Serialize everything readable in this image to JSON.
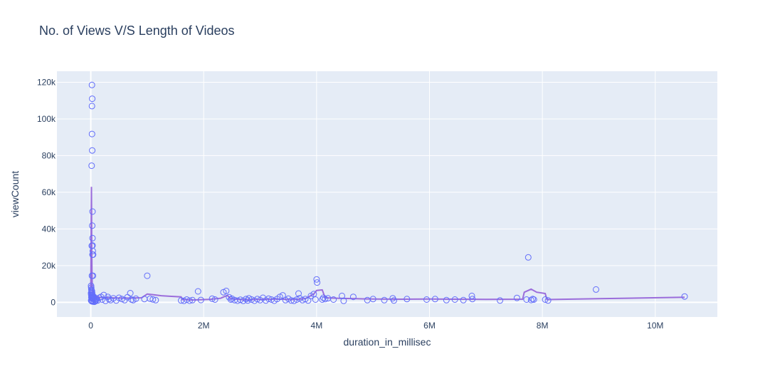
{
  "chart_data": {
    "type": "scatter",
    "title": "No. of Views V/S Length of Videos",
    "xlabel": "duration_in_millisec",
    "ylabel": "viewCount",
    "xlim": [
      -600000,
      11100000
    ],
    "ylim": [
      -8000,
      126000
    ],
    "x_ticks": [
      0,
      2000000,
      4000000,
      6000000,
      8000000,
      10000000
    ],
    "x_tick_labels": [
      "0",
      "2M",
      "4M",
      "6M",
      "8M",
      "10M"
    ],
    "y_ticks": [
      0,
      20000,
      40000,
      60000,
      80000,
      100000,
      120000
    ],
    "y_tick_labels": [
      "0",
      "20k",
      "40k",
      "60k",
      "80k",
      "100k",
      "120k"
    ],
    "grid": true,
    "colors": {
      "background": "#e5ecf6",
      "grid": "#ffffff",
      "marker": "#636efa",
      "trend": "#9b6ddb",
      "text": "#2a3f5f"
    },
    "series": [
      {
        "mode": "markers",
        "points": [
          [
            20000,
            118500
          ],
          [
            25000,
            111000
          ],
          [
            20000,
            107000
          ],
          [
            22000,
            91800
          ],
          [
            25000,
            82800
          ],
          [
            15000,
            74500
          ],
          [
            30000,
            49500
          ],
          [
            25000,
            41800
          ],
          [
            30000,
            35000
          ],
          [
            18000,
            30800
          ],
          [
            30000,
            31000
          ],
          [
            35000,
            28000
          ],
          [
            30000,
            26000
          ],
          [
            40000,
            26000
          ],
          [
            38000,
            14500
          ],
          [
            20000,
            14500
          ],
          [
            5000,
            9000
          ],
          [
            8000,
            8000
          ],
          [
            10000,
            7000
          ],
          [
            15000,
            6500
          ],
          [
            20000,
            6000
          ],
          [
            12000,
            5500
          ],
          [
            5000,
            5000
          ],
          [
            25000,
            4800
          ],
          [
            8000,
            4200
          ],
          [
            18000,
            3800
          ],
          [
            30000,
            3500
          ],
          [
            40000,
            3200
          ],
          [
            55000,
            3000
          ],
          [
            10000,
            2800
          ],
          [
            15000,
            2500
          ],
          [
            22000,
            2200
          ],
          [
            35000,
            2000
          ],
          [
            50000,
            1800
          ],
          [
            70000,
            1500
          ],
          [
            90000,
            1200
          ],
          [
            6000,
            1000
          ],
          [
            12000,
            800
          ],
          [
            20000,
            600
          ],
          [
            28000,
            500
          ],
          [
            45000,
            400
          ],
          [
            65000,
            300
          ],
          [
            85000,
            700
          ],
          [
            100000,
            2000
          ],
          [
            120000,
            1000
          ],
          [
            150000,
            2500
          ],
          [
            180000,
            3000
          ],
          [
            200000,
            1500
          ],
          [
            230000,
            4000
          ],
          [
            260000,
            800
          ],
          [
            300000,
            3000
          ],
          [
            320000,
            1800
          ],
          [
            350000,
            1200
          ],
          [
            400000,
            2200
          ],
          [
            450000,
            1000
          ],
          [
            500000,
            2500
          ],
          [
            550000,
            1800
          ],
          [
            600000,
            1200
          ],
          [
            650000,
            2800
          ],
          [
            700000,
            5000
          ],
          [
            720000,
            1500
          ],
          [
            750000,
            1200
          ],
          [
            800000,
            2000
          ],
          [
            950000,
            1800
          ],
          [
            1000000,
            14500
          ],
          [
            1050000,
            2000
          ],
          [
            1100000,
            1600
          ],
          [
            1150000,
            1200
          ],
          [
            1600000,
            1000
          ],
          [
            1650000,
            800
          ],
          [
            1700000,
            1500
          ],
          [
            1750000,
            900
          ],
          [
            1800000,
            1200
          ],
          [
            1900000,
            6000
          ],
          [
            1950000,
            1300
          ],
          [
            2150000,
            2000
          ],
          [
            2200000,
            1500
          ],
          [
            2350000,
            5500
          ],
          [
            2400000,
            6200
          ],
          [
            2450000,
            2800
          ],
          [
            2480000,
            1500
          ],
          [
            2500000,
            2000
          ],
          [
            2550000,
            1200
          ],
          [
            2600000,
            900
          ],
          [
            2650000,
            1400
          ],
          [
            2700000,
            800
          ],
          [
            2750000,
            1800
          ],
          [
            2780000,
            1000
          ],
          [
            2800000,
            2200
          ],
          [
            2850000,
            1500
          ],
          [
            2900000,
            900
          ],
          [
            2950000,
            1800
          ],
          [
            3000000,
            1200
          ],
          [
            3050000,
            2500
          ],
          [
            3100000,
            1000
          ],
          [
            3150000,
            2000
          ],
          [
            3200000,
            1500
          ],
          [
            3250000,
            900
          ],
          [
            3300000,
            1800
          ],
          [
            3350000,
            3000
          ],
          [
            3400000,
            3800
          ],
          [
            3450000,
            1200
          ],
          [
            3500000,
            2000
          ],
          [
            3550000,
            1000
          ],
          [
            3600000,
            800
          ],
          [
            3650000,
            1500
          ],
          [
            3680000,
            4800
          ],
          [
            3700000,
            2200
          ],
          [
            3750000,
            1200
          ],
          [
            3800000,
            1800
          ],
          [
            3850000,
            1000
          ],
          [
            3900000,
            3500
          ],
          [
            3950000,
            4500
          ],
          [
            3980000,
            1500
          ],
          [
            4000000,
            12500
          ],
          [
            4010000,
            10800
          ],
          [
            4100000,
            1500
          ],
          [
            4120000,
            2500
          ],
          [
            4150000,
            1800
          ],
          [
            4200000,
            2200
          ],
          [
            4300000,
            1500
          ],
          [
            4450000,
            3500
          ],
          [
            4480000,
            800
          ],
          [
            4650000,
            3000
          ],
          [
            4900000,
            1200
          ],
          [
            5000000,
            1800
          ],
          [
            5200000,
            1200
          ],
          [
            5350000,
            2200
          ],
          [
            5370000,
            1000
          ],
          [
            5600000,
            1800
          ],
          [
            5950000,
            1500
          ],
          [
            6100000,
            1800
          ],
          [
            6300000,
            1200
          ],
          [
            6450000,
            1500
          ],
          [
            6600000,
            1200
          ],
          [
            6750000,
            3500
          ],
          [
            6760000,
            1800
          ],
          [
            7250000,
            1000
          ],
          [
            7550000,
            2400
          ],
          [
            7750000,
            24500
          ],
          [
            7720000,
            1500
          ],
          [
            7800000,
            1300
          ],
          [
            7850000,
            1500
          ],
          [
            7830000,
            1800
          ],
          [
            8050000,
            1500
          ],
          [
            8100000,
            1000
          ],
          [
            8950000,
            7000
          ],
          [
            10520000,
            3200
          ]
        ]
      },
      {
        "mode": "lines",
        "points": [
          [
            0,
            8000
          ],
          [
            3000,
            20000
          ],
          [
            6000,
            40000
          ],
          [
            9000,
            52000
          ],
          [
            12000,
            63000
          ],
          [
            14000,
            48000
          ],
          [
            17000,
            30000
          ],
          [
            20000,
            18000
          ],
          [
            25000,
            9000
          ],
          [
            30000,
            6000
          ],
          [
            50000,
            4000
          ],
          [
            80000,
            3200
          ],
          [
            150000,
            2800
          ],
          [
            300000,
            2500
          ],
          [
            600000,
            2300
          ],
          [
            900000,
            2500
          ],
          [
            1000000,
            4500
          ],
          [
            1100000,
            4200
          ],
          [
            1250000,
            3600
          ],
          [
            1400000,
            3300
          ],
          [
            1600000,
            3000
          ],
          [
            1620000,
            1500
          ],
          [
            1800000,
            1300
          ],
          [
            2100000,
            1600
          ],
          [
            2300000,
            2200
          ],
          [
            2420000,
            3800
          ],
          [
            2480000,
            2000
          ],
          [
            2700000,
            1400
          ],
          [
            3000000,
            1600
          ],
          [
            3300000,
            1800
          ],
          [
            3600000,
            1500
          ],
          [
            3800000,
            2000
          ],
          [
            3950000,
            4500
          ],
          [
            4000000,
            6500
          ],
          [
            4100000,
            6800
          ],
          [
            4150000,
            2500
          ],
          [
            4400000,
            2200
          ],
          [
            4700000,
            2000
          ],
          [
            5000000,
            1800
          ],
          [
            5500000,
            1700
          ],
          [
            6000000,
            1800
          ],
          [
            6500000,
            1700
          ],
          [
            7000000,
            1600
          ],
          [
            7650000,
            1700
          ],
          [
            7680000,
            5500
          ],
          [
            7800000,
            7200
          ],
          [
            7900000,
            5500
          ],
          [
            8050000,
            4800
          ],
          [
            8080000,
            1500
          ],
          [
            9000000,
            2000
          ],
          [
            10520000,
            2800
          ]
        ]
      }
    ]
  }
}
